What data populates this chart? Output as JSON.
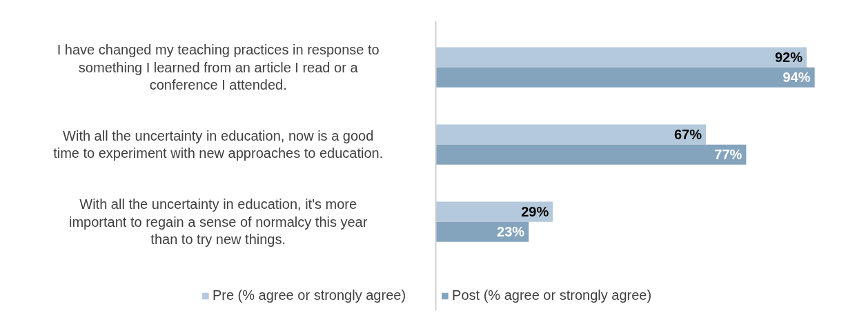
{
  "chart_data": {
    "type": "bar",
    "orientation": "horizontal",
    "categories": [
      "I have changed my teaching practices in response to something I learned from an article I read or a conference I attended.",
      "With all the uncertainty in education, now is a good time to experiment with new approaches to education.",
      "With all the uncertainty in education, it's more important to regain a sense of normalcy this year than to try new things."
    ],
    "series": [
      {
        "name": "Pre (% agree or strongly agree)",
        "color": "#b4c9db",
        "values": [
          92,
          67,
          29
        ],
        "value_labels": [
          "92%",
          "67%",
          "29%"
        ]
      },
      {
        "name": "Post (% agree or strongly agree)",
        "color": "#84a3bd",
        "values": [
          94,
          77,
          23
        ],
        "value_labels": [
          "94%",
          "77%",
          "23%"
        ]
      }
    ],
    "legend": "bottom"
  }
}
